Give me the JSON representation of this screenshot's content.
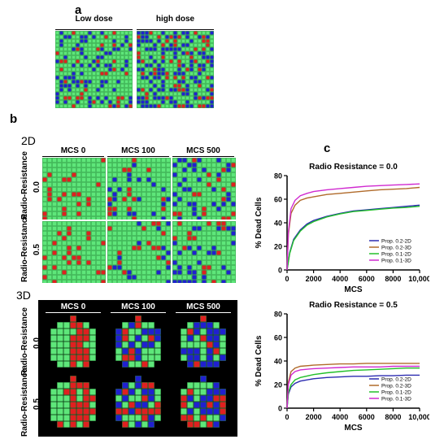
{
  "panels": {
    "a": {
      "letter": "a",
      "headers": [
        "Low dose",
        "high dose"
      ]
    },
    "b": {
      "letter": "b",
      "section_2d": "2D",
      "section_3d": "3D",
      "mcs_headers": [
        "MCS 0",
        "MCS 100",
        "MCS 500"
      ],
      "rows_2d": [
        {
          "label": "Radio-Resistance",
          "value": "0.0"
        },
        {
          "label": "Radio-Resistance",
          "value": "0.5"
        }
      ],
      "rows_3d": [
        {
          "label": "Radio-Resistance",
          "value": "0.0"
        },
        {
          "label": "Radio-Resistance",
          "value": "0.5"
        }
      ]
    },
    "c": {
      "letter": "c"
    }
  },
  "colors": {
    "healthy_cell": "#5ee67a",
    "damaged_cell": "#2020d0",
    "dead_cell": "#e02020",
    "background_3d": "#000000"
  },
  "chart_data": [
    {
      "type": "line",
      "title": "Radio Resistance = 0.0",
      "xlabel": "MCS",
      "ylabel": "% Dead Cells",
      "xlim": [
        0,
        10000
      ],
      "ylim": [
        0,
        80
      ],
      "xticks": [
        0,
        2000,
        4000,
        6000,
        8000,
        10000
      ],
      "xtick_labels": [
        "0",
        "2000",
        "4000",
        "6000",
        "8000",
        "10,000"
      ],
      "yticks": [
        0,
        20,
        40,
        60,
        80
      ],
      "legend_position": "bottom-right",
      "series": [
        {
          "name": "Prop. 0.2-2D",
          "color": "#2b2bb0",
          "x": [
            0,
            200,
            500,
            1000,
            1500,
            2000,
            3000,
            4000,
            5000,
            6000,
            7000,
            8000,
            9000,
            10000
          ],
          "y": [
            0,
            15,
            26,
            34,
            39,
            42,
            45.5,
            48,
            50,
            51,
            52,
            53,
            54,
            55
          ]
        },
        {
          "name": "Prop. 0.2-3D",
          "color": "#b06a2a",
          "x": [
            0,
            100,
            300,
            600,
            1000,
            1500,
            2000,
            3000,
            4000,
            5000,
            6000,
            7000,
            8000,
            9000,
            10000
          ],
          "y": [
            0,
            30,
            48,
            55,
            59,
            61,
            62,
            64,
            65,
            66,
            67,
            68,
            68.5,
            69,
            70
          ]
        },
        {
          "name": "Prop. 0.1-2D",
          "color": "#22c02a",
          "x": [
            0,
            200,
            500,
            1000,
            1500,
            2000,
            3000,
            4000,
            5000,
            6000,
            7000,
            8000,
            9000,
            10000
          ],
          "y": [
            0,
            14,
            25,
            33,
            38,
            41,
            45,
            47.5,
            49.5,
            50.5,
            51.5,
            52.5,
            53,
            54
          ]
        },
        {
          "name": "Prop. 0.1-3D",
          "color": "#d02ad0",
          "x": [
            0,
            100,
            300,
            600,
            1000,
            1500,
            2000,
            3000,
            4000,
            5000,
            6000,
            7000,
            8000,
            9000,
            10000
          ],
          "y": [
            0,
            32,
            52,
            59,
            63,
            65,
            66.5,
            68,
            69,
            70,
            71,
            71.5,
            72,
            72.5,
            73
          ]
        }
      ]
    },
    {
      "type": "line",
      "title": "Radio Resistance = 0.5",
      "xlabel": "MCS",
      "ylabel": "% Dead Cells",
      "xlim": [
        0,
        10000
      ],
      "ylim": [
        0,
        80
      ],
      "xticks": [
        0,
        2000,
        4000,
        6000,
        8000,
        10000
      ],
      "xtick_labels": [
        "0",
        "2000",
        "4000",
        "6000",
        "8000",
        "10,000"
      ],
      "yticks": [
        0,
        20,
        40,
        60,
        80
      ],
      "legend_position": "bottom-right",
      "series": [
        {
          "name": "Prop. 0.2-2D",
          "color": "#2b2bb0",
          "x": [
            0,
            100,
            300,
            600,
            1000,
            2000,
            3000,
            4000,
            5000,
            6000,
            7000,
            8000,
            9000,
            10000
          ],
          "y": [
            0,
            12,
            18,
            21,
            23,
            25,
            26,
            26.5,
            27,
            27,
            27.5,
            27.5,
            28,
            28
          ]
        },
        {
          "name": "Prop. 0.2-3D",
          "color": "#b06a2a",
          "x": [
            0,
            100,
            300,
            600,
            1000,
            2000,
            3000,
            4000,
            5000,
            6000,
            7000,
            8000,
            9000,
            10000
          ],
          "y": [
            0,
            22,
            31,
            34,
            35.5,
            36.5,
            37,
            37.5,
            37.5,
            38,
            38,
            38,
            38,
            38
          ]
        },
        {
          "name": "Prop. 0.1-2D",
          "color": "#22c02a",
          "x": [
            0,
            100,
            300,
            600,
            1000,
            2000,
            3000,
            4000,
            5000,
            6000,
            7000,
            8000,
            9000,
            10000
          ],
          "y": [
            0,
            13,
            20,
            24,
            26,
            28.5,
            30,
            31,
            32,
            32.5,
            33,
            33.5,
            34,
            34
          ]
        },
        {
          "name": "Prop. 0.1-3D",
          "color": "#d02ad0",
          "x": [
            0,
            100,
            300,
            600,
            1000,
            2000,
            3000,
            4000,
            5000,
            6000,
            7000,
            8000,
            9000,
            10000
          ],
          "y": [
            0,
            20,
            28,
            31,
            32.5,
            33.5,
            34,
            34.5,
            35,
            35,
            35,
            35.5,
            35.5,
            35.5
          ]
        }
      ]
    }
  ]
}
